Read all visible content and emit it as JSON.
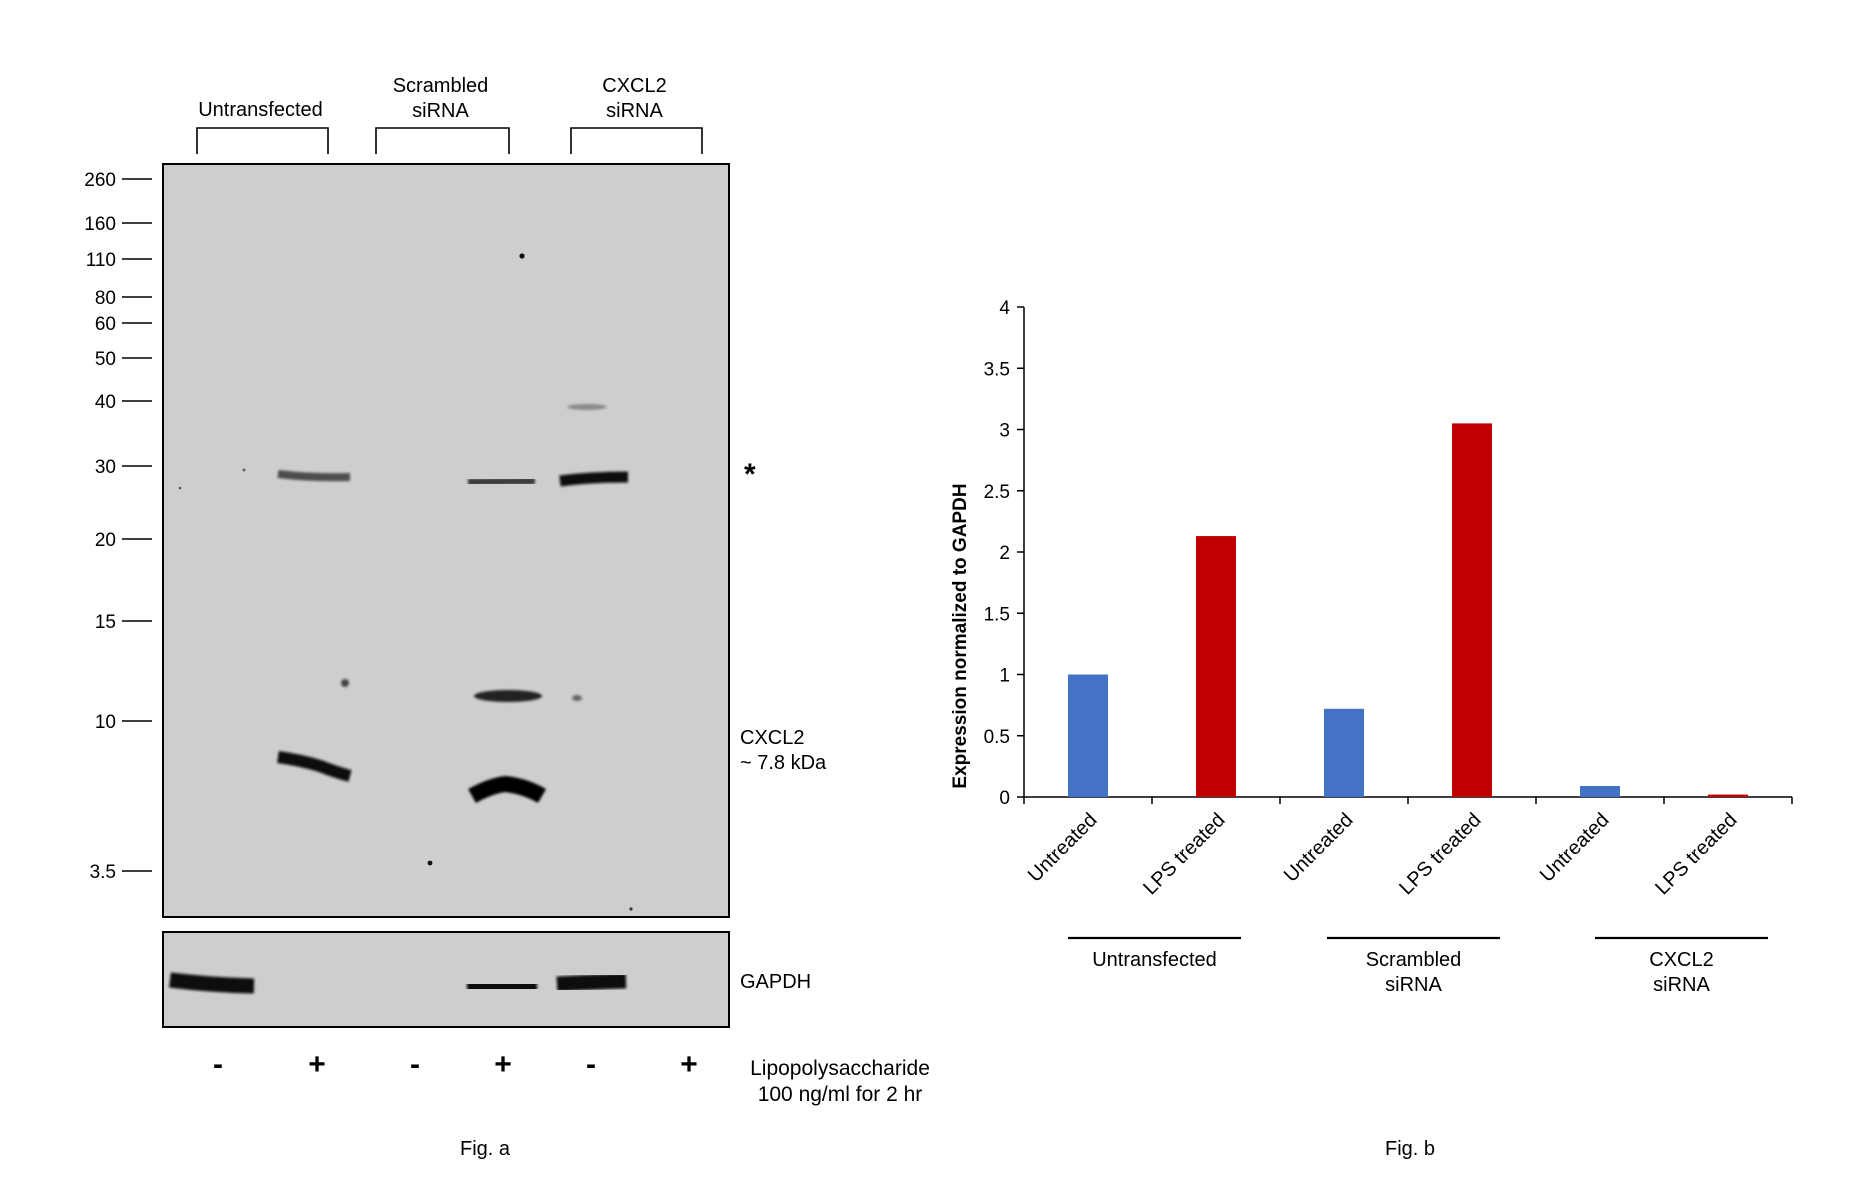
{
  "fig_a": {
    "caption": "Fig. a",
    "groups": [
      {
        "lines": [
          "Untransfected"
        ]
      },
      {
        "lines": [
          "Scrambled",
          "siRNA"
        ]
      },
      {
        "lines": [
          "CXCL2",
          "siRNA"
        ]
      }
    ],
    "markers": [
      "260",
      "160",
      "110",
      "80",
      "60",
      "50",
      "40",
      "30",
      "20",
      "15",
      "10",
      "3.5"
    ],
    "asterisk": "*",
    "band_label": [
      "CXCL2",
      "~ 7.8 kDa"
    ],
    "loading_control": "GAPDH",
    "treatment_signs": [
      "-",
      "+",
      "-",
      "+",
      "-",
      "+"
    ],
    "treatment_label": [
      "Lipopolysaccharide",
      "100 ng/ml for 2 hr"
    ]
  },
  "fig_b": {
    "caption": "Fig. b",
    "groups": [
      {
        "lines": [
          "Untransfected"
        ]
      },
      {
        "lines": [
          "Scrambled",
          "siRNA"
        ]
      },
      {
        "lines": [
          "CXCL2",
          "siRNA"
        ]
      }
    ]
  },
  "chart_data": {
    "type": "bar",
    "categories": [
      "Untreated",
      "LPS treated",
      "Untreated",
      "LPS treated",
      "Untreated",
      "LPS treated"
    ],
    "values": [
      1.0,
      2.13,
      0.72,
      3.05,
      0.09,
      0.02
    ],
    "bar_colors": [
      "#4472c4",
      "#c00000",
      "#4472c4",
      "#c00000",
      "#4472c4",
      "#c00000"
    ],
    "ylabel": "Expression normalized to GAPDH",
    "ylim": [
      0,
      4
    ],
    "yticks": [
      0,
      0.5,
      1,
      1.5,
      2,
      2.5,
      3,
      3.5,
      4
    ],
    "grid": false
  }
}
